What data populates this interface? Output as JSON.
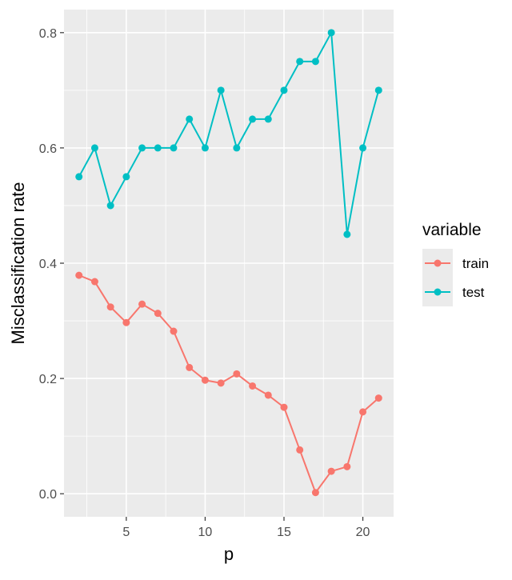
{
  "chart_data": {
    "type": "line",
    "xlabel": "p",
    "ylabel": "Misclassification rate",
    "xlim": [
      1.05,
      21.95
    ],
    "ylim": [
      -0.04,
      0.84
    ],
    "x_ticks": [
      5,
      10,
      15,
      20
    ],
    "y_ticks": [
      0.0,
      0.2,
      0.4,
      0.6,
      0.8
    ],
    "x_tick_labels": [
      "5",
      "10",
      "15",
      "20"
    ],
    "y_tick_labels": [
      "0.0",
      "0.2",
      "0.4",
      "0.6",
      "0.8"
    ],
    "grid": true,
    "legend": {
      "title": "variable",
      "placement": "right"
    },
    "x": [
      2,
      3,
      4,
      5,
      6,
      7,
      8,
      9,
      10,
      11,
      12,
      13,
      14,
      15,
      16,
      17,
      18,
      19,
      20,
      21
    ],
    "series": [
      {
        "name": "train",
        "color": "#F8766D",
        "values": [
          0.379,
          0.368,
          0.324,
          0.297,
          0.329,
          0.313,
          0.282,
          0.219,
          0.197,
          0.192,
          0.208,
          0.187,
          0.171,
          0.15,
          0.076,
          0.002,
          0.039,
          0.047,
          0.142,
          0.166
        ]
      },
      {
        "name": "test",
        "color": "#00BFC4",
        "values": [
          0.55,
          0.6,
          0.5,
          0.55,
          0.6,
          0.6,
          0.6,
          0.65,
          0.6,
          0.7,
          0.6,
          0.65,
          0.65,
          0.7,
          0.75,
          0.75,
          0.8,
          0.45,
          0.6,
          0.7
        ]
      }
    ]
  }
}
